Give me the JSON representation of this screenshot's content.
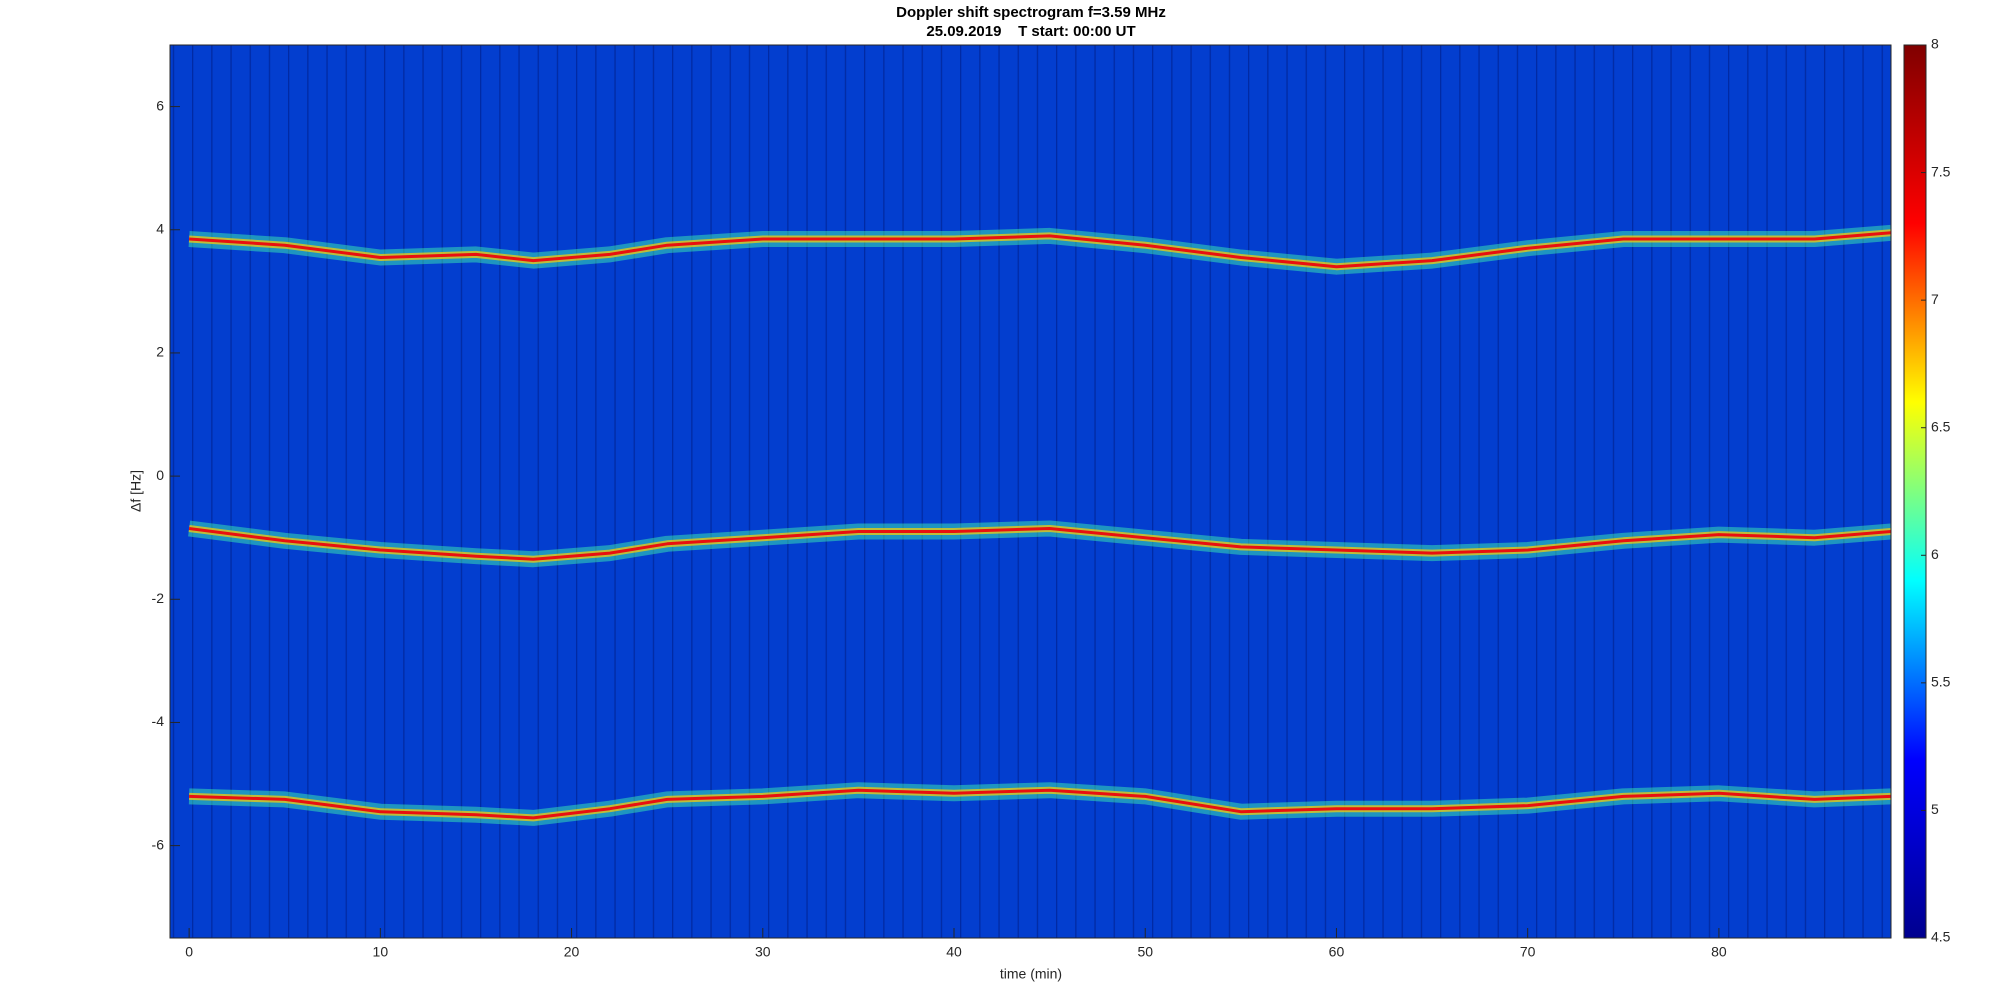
{
  "chart_data": {
    "type": "spectrogram",
    "title": "Doppler shift spectrogram f=3.59 MHz",
    "subtitle": "25.09.2019    T start: 00:00 UT",
    "x_label": "time (min)",
    "y_label": "Δf [Hz]",
    "xlim": [
      -1,
      89
    ],
    "xticks": [
      0,
      10,
      20,
      30,
      40,
      50,
      60,
      70,
      80
    ],
    "ylim": [
      -7.5,
      7
    ],
    "yticks": [
      -6,
      -4,
      -2,
      0,
      2,
      4,
      6
    ],
    "clim": [
      4.5,
      8
    ],
    "cticks": [
      4.5,
      5,
      5.5,
      6,
      6.5,
      7,
      7.5,
      8
    ],
    "x": [
      0,
      5,
      10,
      15,
      18,
      22,
      25,
      30,
      35,
      40,
      45,
      50,
      55,
      60,
      65,
      70,
      75,
      80,
      85,
      89
    ],
    "series": [
      {
        "color": "#e81010",
        "values": [
          3.85,
          3.75,
          3.55,
          3.6,
          3.5,
          3.6,
          3.75,
          3.85,
          3.85,
          3.85,
          3.9,
          3.75,
          3.55,
          3.4,
          3.5,
          3.7,
          3.85,
          3.85,
          3.85,
          3.95
        ]
      },
      {
        "color": "#e81010",
        "values": [
          -0.85,
          -1.05,
          -1.2,
          -1.3,
          -1.35,
          -1.25,
          -1.1,
          -1.0,
          -0.9,
          -0.9,
          -0.85,
          -1.0,
          -1.15,
          -1.2,
          -1.25,
          -1.2,
          -1.05,
          -0.95,
          -1.0,
          -0.9
        ]
      },
      {
        "color": "#e81010",
        "values": [
          -5.2,
          -5.25,
          -5.45,
          -5.5,
          -5.55,
          -5.4,
          -5.25,
          -5.2,
          -5.1,
          -5.15,
          -5.1,
          -5.2,
          -5.45,
          -5.4,
          -5.4,
          -5.35,
          -5.2,
          -5.15,
          -5.25,
          -5.2
        ]
      }
    ]
  }
}
